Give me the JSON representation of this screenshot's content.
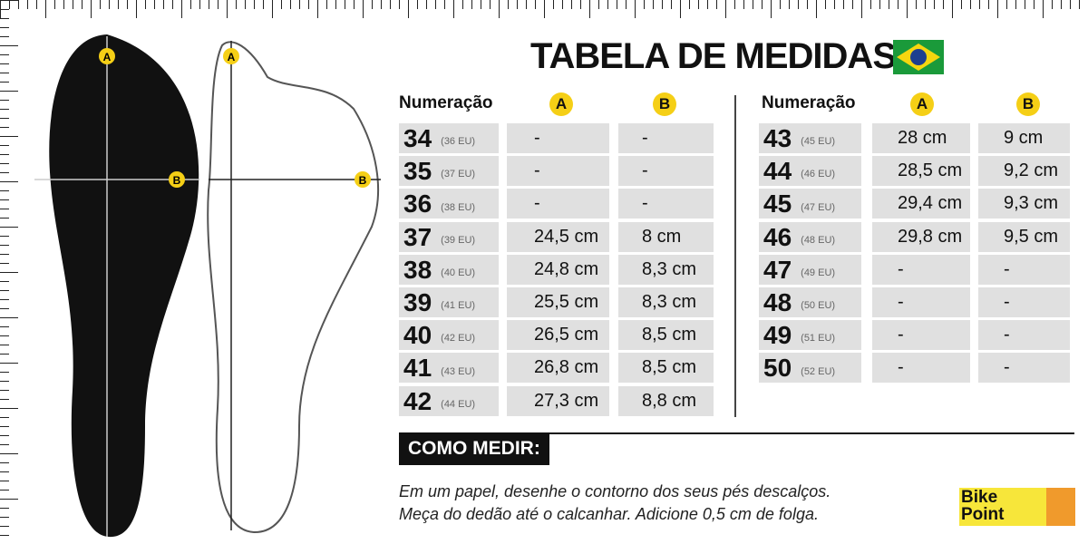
{
  "title": "TABELA DE MEDIDAS",
  "headers": {
    "numbering": "Numeração",
    "a": "A",
    "b": "B"
  },
  "left_rows": [
    {
      "br": "34",
      "eu": "(36 EU)",
      "a": "-",
      "b": "-"
    },
    {
      "br": "35",
      "eu": "(37 EU)",
      "a": "-",
      "b": "-"
    },
    {
      "br": "36",
      "eu": "(38 EU)",
      "a": "-",
      "b": "-"
    },
    {
      "br": "37",
      "eu": "(39 EU)",
      "a": "24,5 cm",
      "b": "8 cm"
    },
    {
      "br": "38",
      "eu": "(40 EU)",
      "a": "24,8 cm",
      "b": "8,3 cm"
    },
    {
      "br": "39",
      "eu": "(41 EU)",
      "a": "25,5 cm",
      "b": "8,3 cm"
    },
    {
      "br": "40",
      "eu": "(42 EU)",
      "a": "26,5 cm",
      "b": "8,5 cm"
    },
    {
      "br": "41",
      "eu": "(43 EU)",
      "a": "26,8 cm",
      "b": "8,5 cm"
    },
    {
      "br": "42",
      "eu": "(44 EU)",
      "a": "27,3 cm",
      "b": "8,8 cm"
    }
  ],
  "right_rows": [
    {
      "br": "43",
      "eu": "(45 EU)",
      "a": "28 cm",
      "b": "9 cm"
    },
    {
      "br": "44",
      "eu": "(46 EU)",
      "a": "28,5 cm",
      "b": "9,2 cm"
    },
    {
      "br": "45",
      "eu": "(47 EU)",
      "a": "29,4 cm",
      "b": "9,3 cm"
    },
    {
      "br": "46",
      "eu": "(48 EU)",
      "a": "29,8 cm",
      "b": "9,5 cm"
    },
    {
      "br": "47",
      "eu": "(49 EU)",
      "a": "-",
      "b": "-"
    },
    {
      "br": "48",
      "eu": "(50 EU)",
      "a": "-",
      "b": "-"
    },
    {
      "br": "49",
      "eu": "(51 EU)",
      "a": "-",
      "b": "-"
    },
    {
      "br": "50",
      "eu": "(52 EU)",
      "a": "-",
      "b": "-"
    }
  ],
  "how_to": {
    "heading": "COMO MEDIR:",
    "line1": "Em um papel,  desenhe o contorno dos seus pés descalços.",
    "line2": "Meça do dedão até o calcanhar. Adicione 0,5 cm de folga."
  },
  "logo": {
    "text": "Bike Point"
  },
  "colors": {
    "badge": "#f5cf16",
    "cell": "#e0e0e0"
  }
}
